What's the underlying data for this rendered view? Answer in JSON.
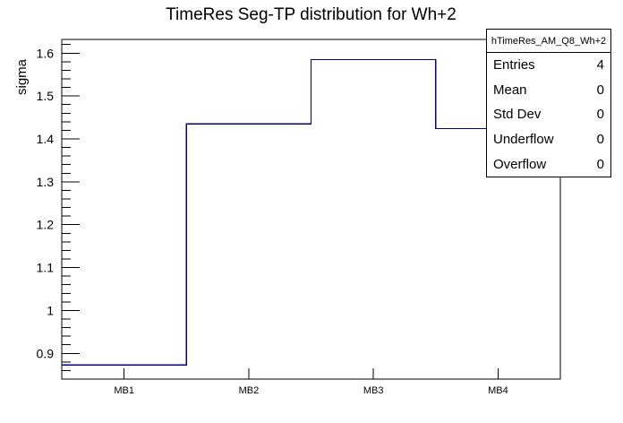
{
  "chart_data": {
    "type": "step-histogram",
    "title": "TimeRes Seg-TP distribution for Wh+2",
    "xlabel": "",
    "ylabel": "sigma",
    "categories": [
      "MB1",
      "MB2",
      "MB3",
      "MB4"
    ],
    "values": [
      0.873,
      1.435,
      1.585,
      1.424
    ],
    "ylim": [
      0.84,
      1.632
    ],
    "yticks": [
      {
        "value": 0.9,
        "label": "0.9"
      },
      {
        "value": 1.0,
        "label": "1"
      },
      {
        "value": 1.1,
        "label": "1.1"
      },
      {
        "value": 1.2,
        "label": "1.2"
      },
      {
        "value": 1.3,
        "label": "1.3"
      },
      {
        "value": 1.4,
        "label": "1.4"
      },
      {
        "value": 1.5,
        "label": "1.5"
      },
      {
        "value": 1.6,
        "label": "1.6"
      }
    ],
    "y_minor_step": 0.02,
    "grid": false,
    "legend_position": "none",
    "line_color": "#000080",
    "frame_color": "#000000",
    "background_color": "#ffffff"
  },
  "stats_box": {
    "title": "hTimeRes_AM_Q8_Wh+2",
    "rows": [
      {
        "label": "Entries",
        "value": "4"
      },
      {
        "label": "Mean",
        "value": "0"
      },
      {
        "label": "Std Dev",
        "value": "0"
      },
      {
        "label": "Underflow",
        "value": "0"
      },
      {
        "label": "Overflow",
        "value": "0"
      }
    ]
  }
}
